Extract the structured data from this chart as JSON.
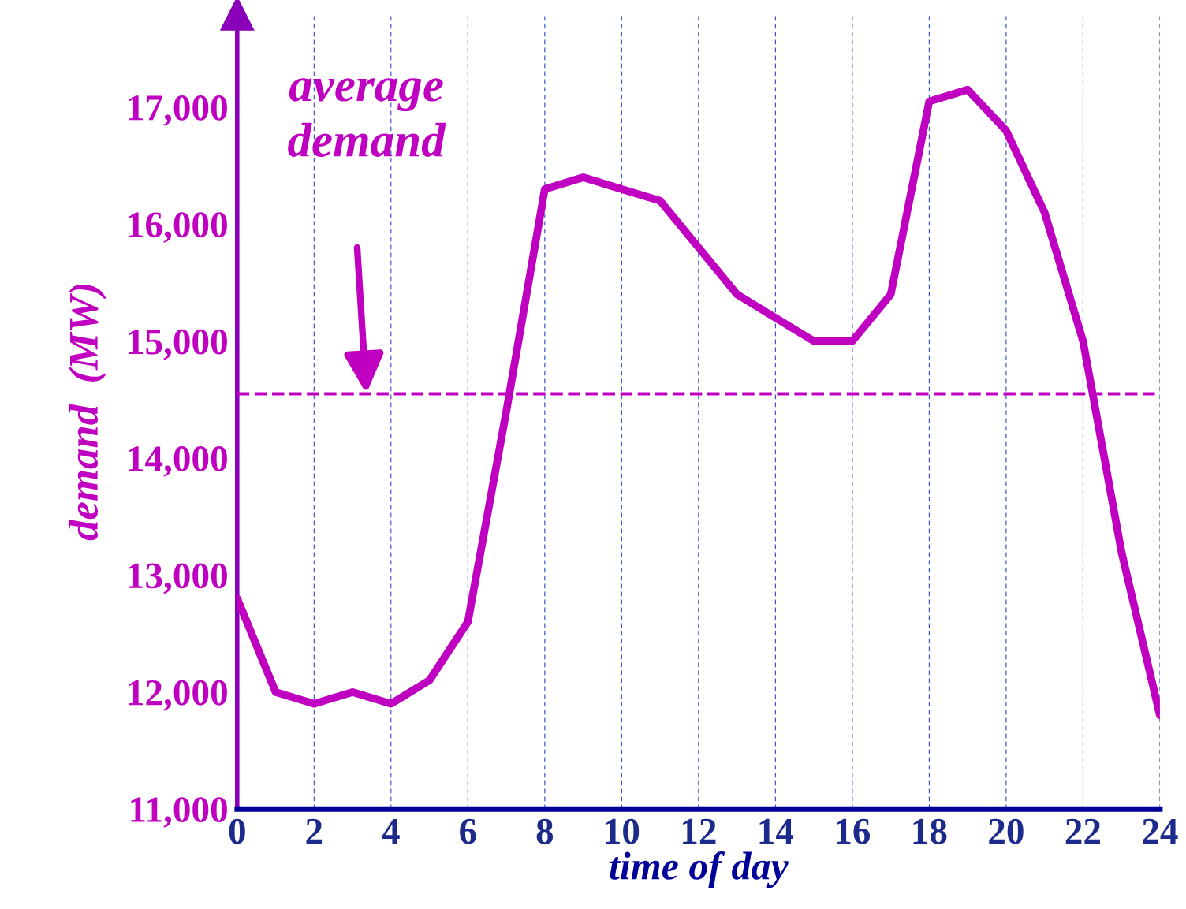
{
  "chart_data": {
    "type": "line",
    "xlabel": "time of day",
    "ylabel": "demand  (MW)",
    "x": [
      0,
      1,
      2,
      3,
      4,
      5,
      6,
      7,
      8,
      9,
      10,
      11,
      12,
      13,
      14,
      15,
      16,
      17,
      18,
      19,
      20,
      21,
      22,
      23,
      24
    ],
    "series": [
      {
        "color": "#c000c0",
        "values": [
          12800,
          12000,
          11900,
          12000,
          11900,
          12100,
          12600,
          14400,
          16300,
          16400,
          16300,
          16200,
          15800,
          15400,
          15200,
          15000,
          15000,
          15400,
          17050,
          17150,
          16800,
          16100,
          15000,
          13200,
          11800
        ]
      }
    ],
    "xlim": [
      0,
      24
    ],
    "ylim": [
      11000,
      17800
    ],
    "xticks": [
      0,
      2,
      4,
      6,
      8,
      10,
      12,
      14,
      16,
      18,
      20,
      22,
      24
    ],
    "yticks": [
      {
        "value": 11000,
        "label": "11,000"
      },
      {
        "value": 12000,
        "label": "12,000"
      },
      {
        "value": 13000,
        "label": "13,000"
      },
      {
        "value": 14000,
        "label": "14,000"
      },
      {
        "value": 15000,
        "label": "15,000"
      },
      {
        "value": 16000,
        "label": "16,000"
      },
      {
        "value": 17000,
        "label": "17,000"
      }
    ],
    "ref_lines": [
      {
        "axis": "y",
        "value": 14550,
        "color": "#c000c0",
        "line_style": "dashed"
      }
    ],
    "annotations": [
      "average\ndemand"
    ],
    "grid": "x",
    "line_style": "solid",
    "marker": "none"
  }
}
